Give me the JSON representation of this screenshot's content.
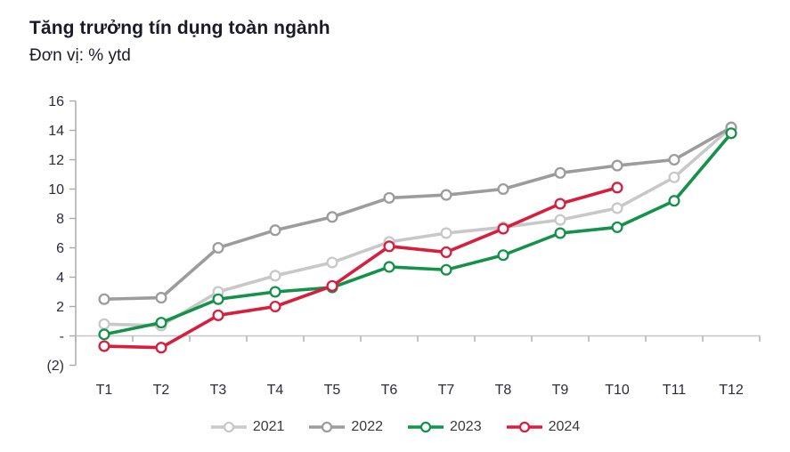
{
  "header": {
    "title": "Tăng trưởng tín dụng toàn ngành",
    "subtitle": "Đơn vị: % ytd"
  },
  "colors": {
    "title_text": "#1b1b28",
    "axis_text": "#2b2b3a",
    "axis_line": "#ababab",
    "zero_line": "#c6c6c6",
    "series_2021": "#c8c8c8",
    "series_2022": "#9c9c9c",
    "series_2023": "#14924a",
    "series_2024": "#d81e3e"
  },
  "chart_data": {
    "type": "line",
    "title": "Tăng trưởng tín dụng toàn ngành",
    "subtitle": "Đơn vị: % ytd",
    "ylabel": "% ytd",
    "xlabel": "",
    "grid": false,
    "legend_position": "bottom",
    "ylim": [
      -2,
      16
    ],
    "y_ticks": [
      16,
      14,
      12,
      10,
      8,
      6,
      4,
      2,
      0,
      -2
    ],
    "y_tick_labels": [
      "16",
      "14",
      "12",
      "10",
      "8",
      "6",
      "4",
      "2",
      "-",
      "(2)"
    ],
    "categories": [
      "T1",
      "T2",
      "T3",
      "T4",
      "T5",
      "T6",
      "T7",
      "T8",
      "T9",
      "T10",
      "T11",
      "T12"
    ],
    "series": [
      {
        "name": "2021",
        "color": "#c8c8c8",
        "values": [
          0.8,
          0.7,
          3.0,
          4.1,
          5.0,
          6.4,
          7.0,
          7.4,
          7.9,
          8.7,
          10.8,
          14.2
        ]
      },
      {
        "name": "2022",
        "color": "#9c9c9c",
        "values": [
          2.5,
          2.6,
          6.0,
          7.2,
          8.1,
          9.4,
          9.6,
          10.0,
          11.1,
          11.6,
          12.0,
          14.2
        ]
      },
      {
        "name": "2023",
        "color": "#14924a",
        "values": [
          0.1,
          0.9,
          2.5,
          3.0,
          3.3,
          4.7,
          4.5,
          5.5,
          7.0,
          7.4,
          9.2,
          13.8
        ]
      },
      {
        "name": "2024",
        "color": "#d81e3e",
        "values": [
          -0.7,
          -0.8,
          1.4,
          2.0,
          3.4,
          6.1,
          5.7,
          7.3,
          9.0,
          10.1
        ]
      }
    ]
  }
}
